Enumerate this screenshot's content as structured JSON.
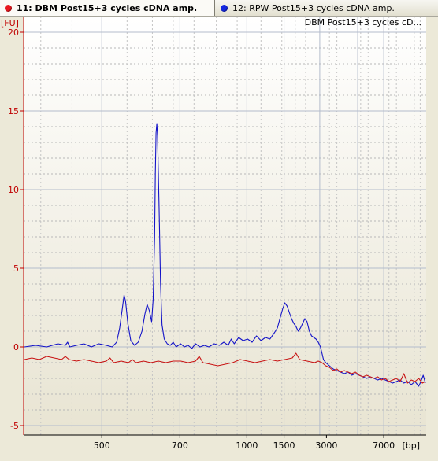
{
  "tabs": [
    {
      "label": "11: DBM Post15+3 cycles cDNA amp.",
      "color": "#e8171e",
      "active": true
    },
    {
      "label": "12: RPW Post15+3 cycles cDNA amp.",
      "color": "#1528e0",
      "active": false
    }
  ],
  "chart_data": {
    "type": "line",
    "title": "DBM Post15+3 cycles cD...",
    "xlabel": "[bp]",
    "ylabel": "[FU]",
    "x_ticks": [
      "500",
      "700",
      "1000",
      "1500",
      "3000",
      "7000"
    ],
    "y_ticks": [
      "-5",
      "0",
      "5",
      "10",
      "15",
      "20"
    ],
    "ylim": [
      -5.6,
      21
    ],
    "grid": true,
    "series": [
      {
        "name": "12: RPW Post15+3 cycles cDNA amp.",
        "color": "#1414c8",
        "points": [
          [
            0,
            0.0
          ],
          [
            15,
            0.1
          ],
          [
            30,
            0.0
          ],
          [
            45,
            0.2
          ],
          [
            55,
            0.1
          ],
          [
            58,
            0.3
          ],
          [
            61,
            0.0
          ],
          [
            70,
            0.1
          ],
          [
            80,
            0.2
          ],
          [
            90,
            0.0
          ],
          [
            100,
            0.2
          ],
          [
            110,
            0.1
          ],
          [
            118,
            0.0
          ],
          [
            124,
            0.3
          ],
          [
            128,
            1.2
          ],
          [
            132,
            2.6
          ],
          [
            134,
            3.3
          ],
          [
            136,
            2.9
          ],
          [
            139,
            1.5
          ],
          [
            143,
            0.4
          ],
          [
            148,
            0.1
          ],
          [
            153,
            0.3
          ],
          [
            158,
            1.0
          ],
          [
            162,
            2.1
          ],
          [
            165,
            2.7
          ],
          [
            168,
            2.3
          ],
          [
            171,
            1.6
          ],
          [
            173,
            3.0
          ],
          [
            175,
            7.0
          ],
          [
            176,
            11.0
          ],
          [
            177,
            13.6
          ],
          [
            178,
            14.2
          ],
          [
            179,
            13.4
          ],
          [
            181,
            9.0
          ],
          [
            183,
            4.0
          ],
          [
            185,
            1.4
          ],
          [
            188,
            0.5
          ],
          [
            192,
            0.2
          ],
          [
            196,
            0.1
          ],
          [
            200,
            0.3
          ],
          [
            204,
            0.0
          ],
          [
            210,
            0.2
          ],
          [
            215,
            0.0
          ],
          [
            220,
            0.1
          ],
          [
            225,
            -0.1
          ],
          [
            230,
            0.2
          ],
          [
            236,
            0.0
          ],
          [
            242,
            0.1
          ],
          [
            248,
            0.0
          ],
          [
            255,
            0.2
          ],
          [
            262,
            0.1
          ],
          [
            268,
            0.3
          ],
          [
            274,
            0.1
          ],
          [
            278,
            0.5
          ],
          [
            282,
            0.2
          ],
          [
            288,
            0.6
          ],
          [
            294,
            0.4
          ],
          [
            300,
            0.5
          ],
          [
            306,
            0.3
          ],
          [
            312,
            0.7
          ],
          [
            318,
            0.4
          ],
          [
            324,
            0.6
          ],
          [
            330,
            0.5
          ],
          [
            336,
            0.9
          ],
          [
            340,
            1.2
          ],
          [
            344,
            1.9
          ],
          [
            347,
            2.4
          ],
          [
            350,
            2.8
          ],
          [
            353,
            2.6
          ],
          [
            356,
            2.2
          ],
          [
            359,
            1.8
          ],
          [
            362,
            1.5
          ],
          [
            365,
            1.3
          ],
          [
            368,
            1.0
          ],
          [
            371,
            1.2
          ],
          [
            374,
            1.5
          ],
          [
            377,
            1.8
          ],
          [
            380,
            1.6
          ],
          [
            383,
            1.0
          ],
          [
            386,
            0.7
          ],
          [
            389,
            0.6
          ],
          [
            392,
            0.5
          ],
          [
            395,
            0.3
          ],
          [
            398,
            0.0
          ],
          [
            400,
            -0.4
          ],
          [
            402,
            -0.8
          ],
          [
            405,
            -1.0
          ],
          [
            410,
            -1.2
          ],
          [
            415,
            -1.4
          ],
          [
            420,
            -1.5
          ],
          [
            425,
            -1.6
          ],
          [
            430,
            -1.7
          ],
          [
            435,
            -1.6
          ],
          [
            440,
            -1.8
          ],
          [
            445,
            -1.7
          ],
          [
            450,
            -1.8
          ],
          [
            455,
            -1.9
          ],
          [
            460,
            -2.0
          ],
          [
            465,
            -1.9
          ],
          [
            470,
            -2.0
          ],
          [
            475,
            -2.1
          ],
          [
            480,
            -2.0
          ],
          [
            485,
            -2.1
          ],
          [
            490,
            -2.2
          ],
          [
            495,
            -2.3
          ],
          [
            500,
            -2.2
          ],
          [
            505,
            -2.1
          ],
          [
            510,
            -2.3
          ],
          [
            515,
            -2.2
          ],
          [
            520,
            -2.4
          ],
          [
            525,
            -2.2
          ],
          [
            530,
            -2.5
          ],
          [
            533,
            -2.2
          ],
          [
            536,
            -1.8
          ],
          [
            539,
            -2.3
          ]
        ]
      },
      {
        "name": "11: DBM Post15+3 cycles cDNA amp.",
        "color": "#c81414",
        "points": [
          [
            0,
            -0.8
          ],
          [
            10,
            -0.7
          ],
          [
            20,
            -0.8
          ],
          [
            30,
            -0.6
          ],
          [
            40,
            -0.7
          ],
          [
            50,
            -0.8
          ],
          [
            55,
            -0.6
          ],
          [
            60,
            -0.8
          ],
          [
            70,
            -0.9
          ],
          [
            80,
            -0.8
          ],
          [
            90,
            -0.9
          ],
          [
            100,
            -1.0
          ],
          [
            110,
            -0.9
          ],
          [
            115,
            -0.7
          ],
          [
            120,
            -1.0
          ],
          [
            130,
            -0.9
          ],
          [
            140,
            -1.0
          ],
          [
            145,
            -0.8
          ],
          [
            150,
            -1.0
          ],
          [
            160,
            -0.9
          ],
          [
            170,
            -1.0
          ],
          [
            180,
            -0.9
          ],
          [
            190,
            -1.0
          ],
          [
            200,
            -0.9
          ],
          [
            210,
            -0.9
          ],
          [
            220,
            -1.0
          ],
          [
            230,
            -0.9
          ],
          [
            235,
            -0.6
          ],
          [
            240,
            -1.0
          ],
          [
            250,
            -1.1
          ],
          [
            260,
            -1.2
          ],
          [
            270,
            -1.1
          ],
          [
            280,
            -1.0
          ],
          [
            290,
            -0.8
          ],
          [
            300,
            -0.9
          ],
          [
            310,
            -1.0
          ],
          [
            320,
            -0.9
          ],
          [
            330,
            -0.8
          ],
          [
            340,
            -0.9
          ],
          [
            350,
            -0.8
          ],
          [
            360,
            -0.7
          ],
          [
            365,
            -0.4
          ],
          [
            370,
            -0.8
          ],
          [
            380,
            -0.9
          ],
          [
            390,
            -1.0
          ],
          [
            395,
            -0.9
          ],
          [
            400,
            -1.0
          ],
          [
            405,
            -1.2
          ],
          [
            410,
            -1.3
          ],
          [
            415,
            -1.5
          ],
          [
            420,
            -1.4
          ],
          [
            425,
            -1.6
          ],
          [
            430,
            -1.5
          ],
          [
            435,
            -1.6
          ],
          [
            440,
            -1.7
          ],
          [
            445,
            -1.6
          ],
          [
            450,
            -1.8
          ],
          [
            455,
            -1.9
          ],
          [
            460,
            -1.8
          ],
          [
            465,
            -1.9
          ],
          [
            470,
            -2.0
          ],
          [
            475,
            -1.9
          ],
          [
            480,
            -2.1
          ],
          [
            485,
            -2.0
          ],
          [
            490,
            -2.2
          ],
          [
            495,
            -2.1
          ],
          [
            500,
            -2.0
          ],
          [
            505,
            -2.2
          ],
          [
            510,
            -1.7
          ],
          [
            515,
            -2.3
          ],
          [
            520,
            -2.1
          ],
          [
            525,
            -2.2
          ],
          [
            530,
            -2.0
          ],
          [
            535,
            -2.3
          ],
          [
            539,
            -2.2
          ]
        ]
      }
    ]
  }
}
